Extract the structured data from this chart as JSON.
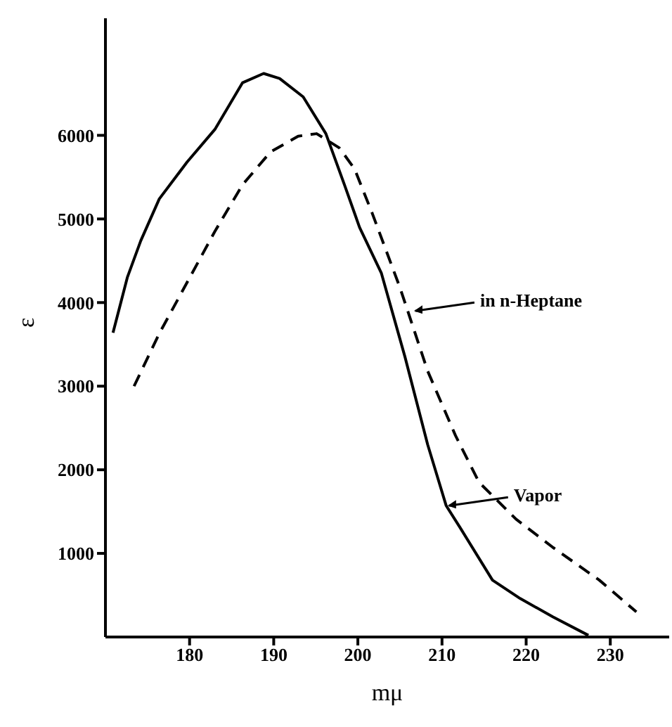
{
  "chart_data": {
    "type": "line",
    "xlabel": "mμ",
    "ylabel": "ε",
    "xlim": [
      170,
      237
    ],
    "ylim": [
      0,
      7400
    ],
    "xticks": [
      180,
      190,
      200,
      210,
      220,
      230
    ],
    "yticks": [
      1000,
      2000,
      3000,
      4000,
      5000,
      6000
    ],
    "grid": false,
    "marker": "none",
    "series": [
      {
        "color": "#000000",
        "line_style": "solid",
        "x": [
          170.9,
          172.6,
          174.2,
          176.4,
          179.7,
          183.0,
          186.3,
          188.8,
          190.7,
          193.5,
          196.2,
          198.4,
          200.2,
          202.8,
          205.6,
          208.3,
          210.5,
          212.2,
          216.0,
          219.3,
          223.2,
          227.4
        ],
        "values": [
          3640,
          4300,
          4740,
          5240,
          5680,
          6070,
          6630,
          6740,
          6680,
          6460,
          6020,
          5410,
          4900,
          4350,
          3350,
          2300,
          1570,
          1300,
          680,
          460,
          240,
          20
        ]
      },
      {
        "color": "#000000",
        "line_style": "dashed",
        "x": [
          173.4,
          176.4,
          179.7,
          183.0,
          186.3,
          189.6,
          192.9,
          195.1,
          197.8,
          199.6,
          201.7,
          205.0,
          208.3,
          211.6,
          214.4,
          218.8,
          223.2,
          228.7,
          233.1
        ],
        "values": [
          3000,
          3630,
          4240,
          4850,
          5410,
          5800,
          5990,
          6020,
          5850,
          5600,
          5070,
          4180,
          3180,
          2410,
          1850,
          1410,
          1070,
          680,
          300
        ]
      }
    ],
    "annotations": [
      {
        "text": "in n-Heptane",
        "x": 206.5,
        "y": 3900
      },
      {
        "text": "Vapor",
        "x": 210.5,
        "y": 1570
      }
    ]
  }
}
